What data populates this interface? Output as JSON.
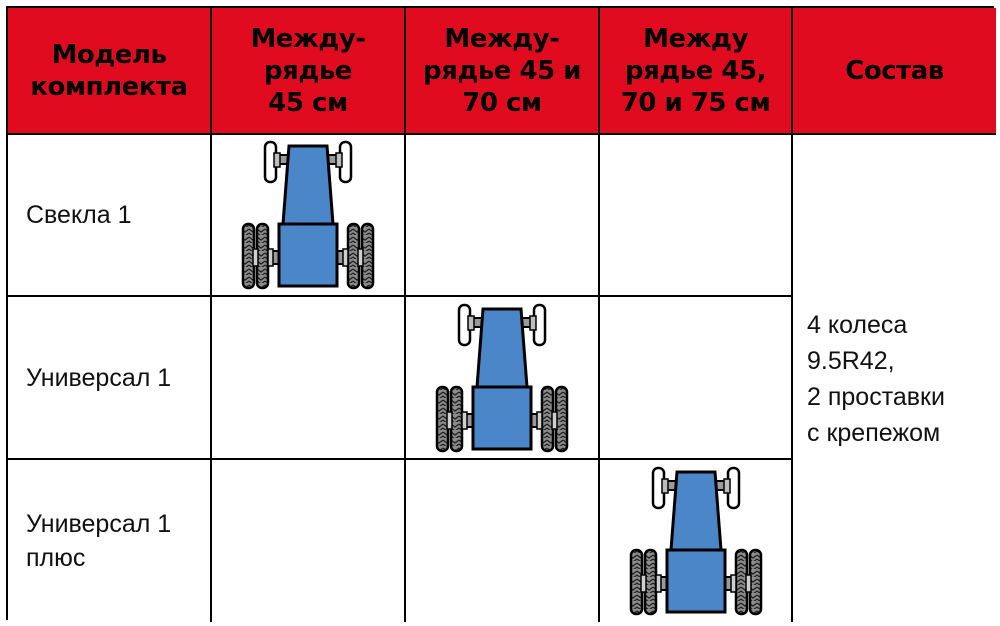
{
  "headers": [
    "Модель\nкомплекта",
    "Между-\nрядье\n45 см",
    "Между-\nрядье 45 и\n70 см",
    "Между\nрядье 45,\n70 и 75 см",
    "Состав"
  ],
  "rows": [
    {
      "label": "Свекла 1",
      "tractor_column": 1
    },
    {
      "label": "Универсал 1",
      "tractor_column": 2
    },
    {
      "label": "Универсал 1\nплюс",
      "tractor_column": 3
    }
  ],
  "sostav": "4 колеса\n9.5R42,\n2 проставки\nс крепежом",
  "colors": {
    "header_bg": "#e10b1f",
    "tractor_body": "#4a86c8",
    "tire": "#8c8c8c"
  },
  "icon": "tractor-top-view-icon"
}
